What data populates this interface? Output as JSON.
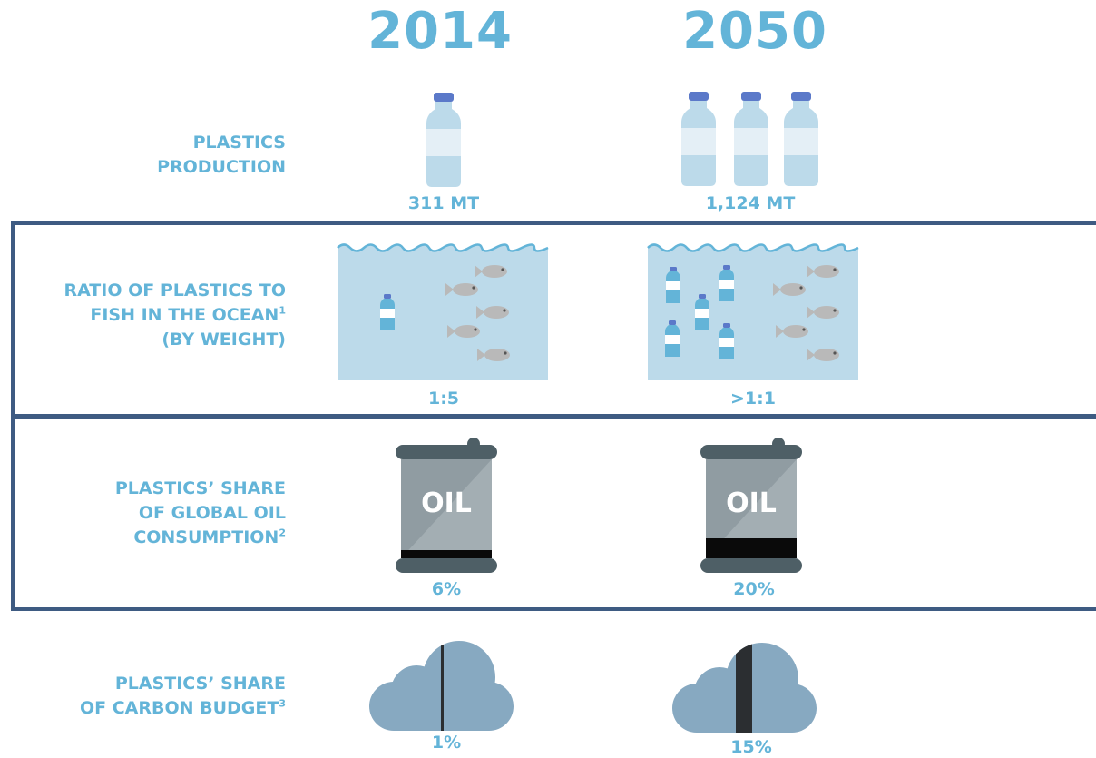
{
  "years": [
    "2014",
    "2050"
  ],
  "rows": {
    "production": {
      "label_lines": [
        "PLASTICS",
        "PRODUCTION"
      ],
      "values": [
        "311 MT",
        "1,124 MT"
      ],
      "bottle_counts": [
        1,
        3
      ]
    },
    "ratio": {
      "label_lines": [
        "RATIO OF PLASTICS TO",
        "FISH IN THE OCEAN",
        "(BY WEIGHT)"
      ],
      "footnote": "1",
      "values": [
        "1:5",
        ">1:1"
      ]
    },
    "oil": {
      "label_lines": [
        "PLASTICS’ SHARE",
        "OF GLOBAL OIL",
        "CONSUMPTION"
      ],
      "footnote": "2",
      "barrel_text": "OIL",
      "values": [
        "6%",
        "20%"
      ],
      "shares_percent": [
        6,
        20
      ]
    },
    "carbon": {
      "label_lines": [
        "PLASTICS’ SHARE",
        "OF CARBON BUDGET"
      ],
      "footnote": "3",
      "values": [
        "1%",
        "15%"
      ],
      "shares_percent": [
        1,
        15
      ]
    }
  },
  "colors": {
    "accent_text": "#63b4d8",
    "band_border": "#3e5b82",
    "water": "#bcdaea",
    "bottle_cap": "#5b79c9",
    "barrel": "#909ca2",
    "barrel_dark": "#4e5f66",
    "cloud": "#87a9c1",
    "cloud_share": "#2b2e31"
  }
}
